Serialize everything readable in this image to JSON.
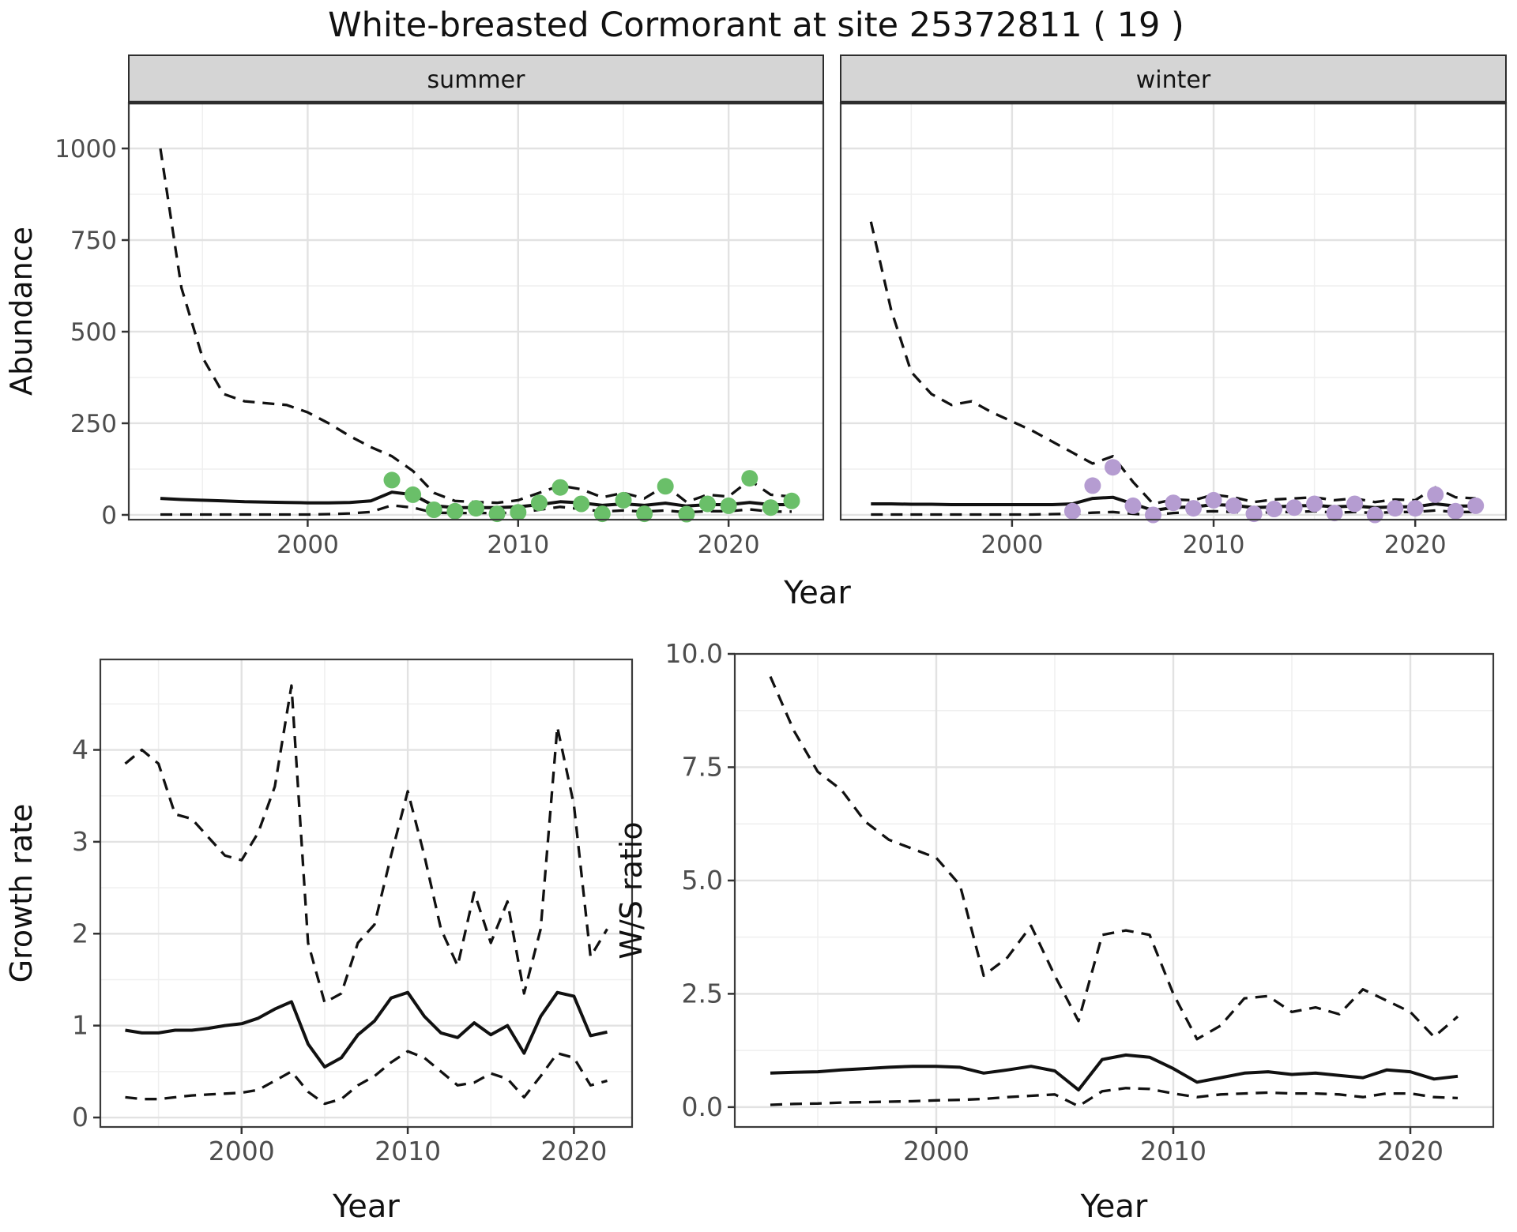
{
  "title": "White-breasted Cormorant at site 25372811 ( 19 )",
  "top_axis": {
    "xlabel": "Year"
  },
  "colors": {
    "summer_point": "#6abf69",
    "winter_point": "#b59cd1",
    "line": "#111111",
    "grid_major": "#e2e2e2",
    "grid_minor": "#efefef",
    "strip_fill": "#d5d5d5",
    "panel_border": "#3b3b3b",
    "tick_text": "#4d4d4d"
  },
  "chart_data": [
    {
      "id": "abundance-summer",
      "type": "line",
      "facet_label": "summer",
      "ylabel": "Abundance",
      "xlabel": "",
      "x_ticks": [
        2000,
        2010,
        2020
      ],
      "x_tick_labels": [
        "2000",
        "2010",
        "2020"
      ],
      "x_minor": [
        1995,
        2005,
        2015
      ],
      "y_ticks": [
        0,
        250,
        500,
        750,
        1000
      ],
      "y_tick_labels": [
        "0",
        "250",
        "500",
        "750",
        "1000"
      ],
      "y_minor": [
        125,
        375,
        625,
        875
      ],
      "xlim": [
        1991.5,
        2024.5
      ],
      "ylim": [
        -13,
        1125
      ],
      "x": [
        1993,
        1994,
        1995,
        1996,
        1997,
        1998,
        1999,
        2000,
        2001,
        2002,
        2003,
        2004,
        2005,
        2006,
        2007,
        2008,
        2009,
        2010,
        2011,
        2012,
        2013,
        2014,
        2015,
        2016,
        2017,
        2018,
        2019,
        2020,
        2021,
        2022,
        2023
      ],
      "series": [
        {
          "name": "upper-ci",
          "style": "dashed",
          "y": [
            1000,
            620,
            430,
            330,
            310,
            305,
            300,
            280,
            250,
            215,
            185,
            160,
            120,
            60,
            38,
            35,
            33,
            40,
            60,
            80,
            70,
            48,
            60,
            45,
            80,
            35,
            55,
            50,
            95,
            55,
            50
          ]
        },
        {
          "name": "estimate",
          "style": "solid",
          "y": [
            45,
            42,
            40,
            38,
            36,
            35,
            34,
            33,
            33,
            34,
            38,
            62,
            55,
            25,
            20,
            20,
            20,
            22,
            28,
            36,
            33,
            26,
            30,
            26,
            32,
            24,
            28,
            28,
            34,
            28,
            28
          ]
        },
        {
          "name": "lower-ci",
          "style": "dashed",
          "y": [
            1,
            1,
            1,
            1,
            1,
            1,
            1,
            1,
            2,
            4,
            8,
            26,
            20,
            6,
            5,
            5,
            5,
            6,
            14,
            22,
            16,
            9,
            12,
            9,
            12,
            7,
            10,
            10,
            15,
            9,
            9
          ]
        }
      ],
      "points": {
        "name": "observed-counts",
        "color_key": "summer_point",
        "x": [
          2004,
          2005,
          2006,
          2007,
          2008,
          2009,
          2010,
          2011,
          2012,
          2013,
          2014,
          2015,
          2016,
          2017,
          2018,
          2019,
          2020,
          2021,
          2022,
          2023
        ],
        "y": [
          95,
          55,
          14,
          10,
          18,
          3,
          7,
          33,
          75,
          30,
          3,
          40,
          3,
          78,
          2,
          30,
          25,
          100,
          20,
          38
        ]
      }
    },
    {
      "id": "abundance-winter",
      "type": "line",
      "facet_label": "winter",
      "ylabel": "",
      "xlabel": "",
      "x_ticks": [
        2000,
        2010,
        2020
      ],
      "x_tick_labels": [
        "2000",
        "2010",
        "2020"
      ],
      "x_minor": [
        1995,
        2005,
        2015
      ],
      "y_ticks": [
        0,
        250,
        500,
        750,
        1000
      ],
      "y_tick_labels": [],
      "y_minor": [
        125,
        375,
        625,
        875
      ],
      "xlim": [
        1991.5,
        2024.5
      ],
      "ylim": [
        -13,
        1125
      ],
      "x": [
        1993,
        1994,
        1995,
        1996,
        1997,
        1998,
        1999,
        2000,
        2001,
        2002,
        2003,
        2004,
        2005,
        2006,
        2007,
        2008,
        2009,
        2010,
        2011,
        2012,
        2013,
        2014,
        2015,
        2016,
        2017,
        2018,
        2019,
        2020,
        2021,
        2022,
        2023
      ],
      "series": [
        {
          "name": "upper-ci",
          "style": "dashed",
          "y": [
            800,
            560,
            390,
            330,
            300,
            310,
            280,
            255,
            230,
            200,
            170,
            140,
            160,
            90,
            30,
            42,
            40,
            55,
            48,
            35,
            42,
            45,
            48,
            40,
            45,
            35,
            42,
            40,
            75,
            48,
            45
          ]
        },
        {
          "name": "estimate",
          "style": "solid",
          "y": [
            30,
            30,
            29,
            29,
            28,
            28,
            28,
            28,
            28,
            28,
            30,
            45,
            48,
            30,
            12,
            20,
            22,
            28,
            26,
            20,
            22,
            24,
            26,
            22,
            24,
            20,
            22,
            22,
            30,
            24,
            24
          ]
        },
        {
          "name": "lower-ci",
          "style": "dashed",
          "y": [
            1,
            1,
            1,
            1,
            1,
            1,
            1,
            1,
            1,
            2,
            3,
            6,
            8,
            3,
            0,
            5,
            8,
            10,
            8,
            5,
            8,
            8,
            10,
            6,
            8,
            5,
            8,
            8,
            12,
            8,
            8
          ]
        }
      ],
      "points": {
        "name": "observed-counts",
        "color_key": "winter_point",
        "x": [
          2003,
          2004,
          2005,
          2006,
          2007,
          2008,
          2009,
          2010,
          2011,
          2012,
          2013,
          2014,
          2015,
          2016,
          2017,
          2018,
          2019,
          2020,
          2021,
          2022,
          2023
        ],
        "y": [
          10,
          80,
          130,
          25,
          0,
          33,
          18,
          40,
          25,
          3,
          16,
          20,
          30,
          5,
          30,
          0,
          18,
          18,
          55,
          10,
          25
        ]
      }
    },
    {
      "id": "growth-rate",
      "type": "line",
      "facet_label": "",
      "ylabel": "Growth rate",
      "xlabel": "Year",
      "x_ticks": [
        2000,
        2010,
        2020
      ],
      "x_tick_labels": [
        "2000",
        "2010",
        "2020"
      ],
      "x_minor": [
        1995,
        2005,
        2015
      ],
      "y_ticks": [
        0,
        1,
        2,
        3,
        4
      ],
      "y_tick_labels": [
        "0",
        "1",
        "2",
        "3",
        "4"
      ],
      "y_minor": [
        0.5,
        1.5,
        2.5,
        3.5,
        4.5
      ],
      "xlim": [
        1991.5,
        2023.5
      ],
      "ylim": [
        -0.103,
        4.984
      ],
      "x": [
        1993,
        1994,
        1995,
        1996,
        1997,
        1998,
        1999,
        2000,
        2001,
        2002,
        2003,
        2004,
        2005,
        2006,
        2007,
        2008,
        2009,
        2010,
        2011,
        2012,
        2013,
        2014,
        2015,
        2016,
        2017,
        2018,
        2019,
        2020,
        2021,
        2022
      ],
      "series": [
        {
          "name": "upper-ci",
          "style": "dashed",
          "y": [
            3.85,
            4.0,
            3.85,
            3.3,
            3.25,
            3.05,
            2.85,
            2.8,
            3.1,
            3.6,
            4.7,
            1.9,
            1.25,
            1.35,
            1.9,
            2.1,
            2.85,
            3.55,
            2.85,
            2.05,
            1.65,
            2.45,
            1.9,
            2.35,
            1.35,
            2.05,
            4.25,
            3.4,
            1.75,
            2.05
          ]
        },
        {
          "name": "estimate",
          "style": "solid",
          "y": [
            0.95,
            0.92,
            0.92,
            0.95,
            0.95,
            0.97,
            1.0,
            1.02,
            1.08,
            1.18,
            1.26,
            0.8,
            0.55,
            0.65,
            0.9,
            1.05,
            1.3,
            1.36,
            1.1,
            0.92,
            0.87,
            1.03,
            0.9,
            1.0,
            0.7,
            1.1,
            1.36,
            1.32,
            0.89,
            0.93
          ]
        },
        {
          "name": "lower-ci",
          "style": "dashed",
          "y": [
            0.22,
            0.2,
            0.2,
            0.22,
            0.24,
            0.25,
            0.26,
            0.27,
            0.3,
            0.4,
            0.5,
            0.28,
            0.15,
            0.2,
            0.35,
            0.45,
            0.6,
            0.72,
            0.65,
            0.5,
            0.35,
            0.38,
            0.48,
            0.42,
            0.22,
            0.45,
            0.7,
            0.65,
            0.35,
            0.4
          ]
        }
      ]
    },
    {
      "id": "ws-ratio",
      "type": "line",
      "facet_label": "",
      "ylabel": "W/S ratio",
      "xlabel": "Year",
      "x_ticks": [
        2000,
        2010,
        2020
      ],
      "x_tick_labels": [
        "2000",
        "2010",
        "2020"
      ],
      "x_minor": [
        1995,
        2005,
        2015
      ],
      "y_ticks": [
        0,
        2.5,
        5,
        7.5,
        10
      ],
      "y_tick_labels": [
        "0.0",
        "2.5",
        "5.0",
        "7.5",
        "10.0"
      ],
      "y_minor": [
        1.25,
        3.75,
        6.25,
        8.75
      ],
      "xlim": [
        1991.5,
        2023.5
      ],
      "ylim": [
        -0.438,
        10.0
      ],
      "x": [
        1993,
        1994,
        1995,
        1996,
        1997,
        1998,
        1999,
        2000,
        2001,
        2002,
        2003,
        2004,
        2005,
        2006,
        2007,
        2008,
        2009,
        2010,
        2011,
        2012,
        2013,
        2014,
        2015,
        2016,
        2017,
        2018,
        2019,
        2020,
        2021,
        2022
      ],
      "series": [
        {
          "name": "upper-ci",
          "style": "dashed",
          "y": [
            9.5,
            8.3,
            7.4,
            7.0,
            6.3,
            5.9,
            5.7,
            5.5,
            4.9,
            2.9,
            3.3,
            4.0,
            2.9,
            1.9,
            3.8,
            3.9,
            3.8,
            2.5,
            1.5,
            1.8,
            2.4,
            2.45,
            2.1,
            2.2,
            2.05,
            2.6,
            2.35,
            2.1,
            1.55,
            2.0
          ]
        },
        {
          "name": "estimate",
          "style": "solid",
          "y": [
            0.75,
            0.77,
            0.78,
            0.82,
            0.85,
            0.88,
            0.9,
            0.9,
            0.88,
            0.75,
            0.82,
            0.9,
            0.8,
            0.38,
            1.05,
            1.15,
            1.1,
            0.85,
            0.55,
            0.65,
            0.75,
            0.78,
            0.72,
            0.75,
            0.7,
            0.65,
            0.82,
            0.78,
            0.62,
            0.68
          ]
        },
        {
          "name": "lower-ci",
          "style": "dashed",
          "y": [
            0.05,
            0.07,
            0.08,
            0.1,
            0.11,
            0.12,
            0.13,
            0.15,
            0.16,
            0.18,
            0.22,
            0.25,
            0.28,
            0.02,
            0.35,
            0.42,
            0.4,
            0.3,
            0.22,
            0.28,
            0.3,
            0.32,
            0.3,
            0.3,
            0.28,
            0.22,
            0.3,
            0.3,
            0.22,
            0.2
          ]
        }
      ]
    }
  ]
}
